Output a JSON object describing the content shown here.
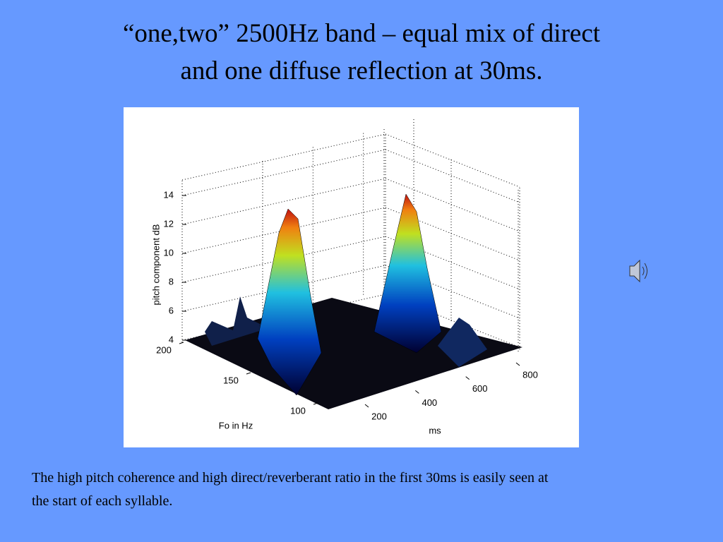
{
  "slide": {
    "title_lines": [
      "“one,two” 2500Hz band – equal mix of direct",
      "and one diffuse reflection at 30ms."
    ],
    "caption_lines": [
      "The high pitch coherence and high direct/reverberant ratio in the first 30ms is easily seen at",
      "the start of each syllable."
    ]
  },
  "figure": {
    "z_label": "pitch component dB",
    "y_label": "Fo in Hz",
    "x_label": "ms",
    "zticks": [
      4,
      6,
      8,
      10,
      12,
      14
    ],
    "yticks": [
      100,
      150,
      200
    ],
    "xticks": [
      200,
      400,
      600,
      800
    ]
  }
}
